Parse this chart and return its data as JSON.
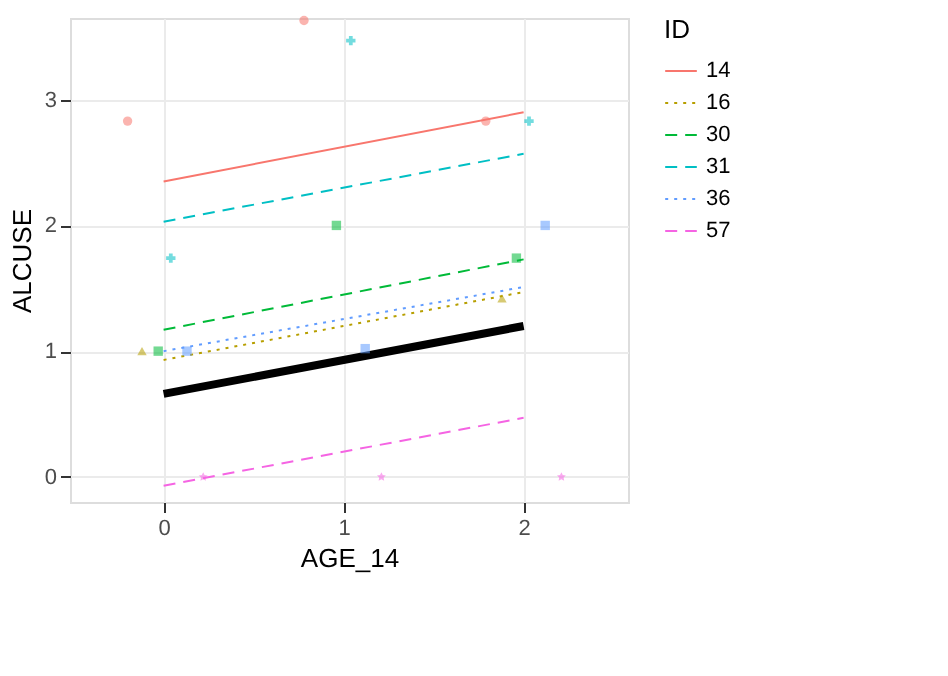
{
  "chart_data": {
    "type": "line",
    "xlabel": "AGE_14",
    "ylabel": "ALCUSE",
    "legend_title": "ID",
    "legend": "right",
    "grid": true,
    "xlim": [
      -0.52,
      2.58
    ],
    "ylim": [
      -0.2,
      3.65
    ],
    "xticks": [
      0,
      1,
      2
    ],
    "yticks": [
      0,
      1,
      2,
      3
    ],
    "series": [
      {
        "name": "14",
        "color": "#F8766D",
        "line_style": "solid",
        "x": [
          0,
          2
        ],
        "values": [
          2.35,
          2.9
        ]
      },
      {
        "name": "16",
        "color": "#B79F00",
        "line_style": "dotted",
        "x": [
          0,
          2
        ],
        "values": [
          0.93,
          1.47
        ]
      },
      {
        "name": "30",
        "color": "#00BA38",
        "line_style": "dashed",
        "x": [
          0,
          2
        ],
        "values": [
          1.17,
          1.73
        ]
      },
      {
        "name": "31",
        "color": "#00BFC4",
        "line_style": "dashed",
        "x": [
          0,
          2
        ],
        "values": [
          2.03,
          2.57
        ]
      },
      {
        "name": "36",
        "color": "#619CFF",
        "line_style": "dotted",
        "x": [
          0,
          2
        ],
        "values": [
          1.0,
          1.51
        ]
      },
      {
        "name": "57",
        "color": "#F564E3",
        "line_style": "dashed",
        "x": [
          0,
          2
        ],
        "values": [
          -0.07,
          0.47
        ]
      },
      {
        "color": "#000000",
        "line_style": "solid",
        "x": [
          0,
          2
        ],
        "values": [
          0.66,
          1.2
        ]
      },
      {
        "type": "scatter",
        "color": "#F8766D",
        "marker": "circle",
        "x": [
          -0.2,
          0.78,
          1.79
        ],
        "values": [
          2.83,
          3.63,
          2.83
        ]
      },
      {
        "type": "scatter",
        "color": "#B79F00",
        "marker": "triangle",
        "x": [
          -0.12,
          1.88
        ],
        "values": [
          1.0,
          1.42
        ]
      },
      {
        "type": "scatter",
        "color": "#00BA38",
        "marker": "square",
        "x": [
          -0.03,
          0.96,
          1.96
        ],
        "values": [
          1.0,
          2.0,
          1.74
        ]
      },
      {
        "type": "scatter",
        "color": "#00BFC4",
        "marker": "cross",
        "x": [
          0.04,
          1.04,
          2.03
        ],
        "values": [
          1.74,
          3.47,
          2.83
        ]
      },
      {
        "type": "scatter",
        "color": "#619CFF",
        "marker": "square",
        "x": [
          0.13,
          1.12,
          2.12
        ],
        "values": [
          1.0,
          1.02,
          2.0
        ]
      },
      {
        "type": "scatter",
        "color": "#F564E3",
        "marker": "star",
        "x": [
          0.22,
          1.21,
          2.21
        ],
        "values": [
          0,
          0,
          0
        ]
      }
    ]
  }
}
